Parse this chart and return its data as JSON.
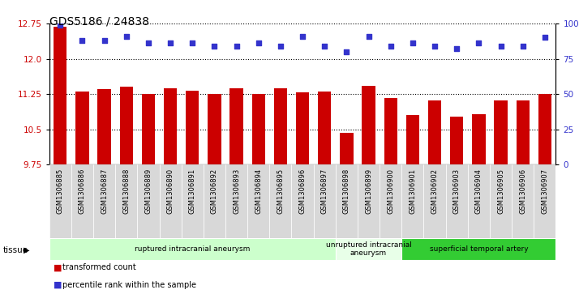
{
  "title": "GDS5186 / 24838",
  "samples": [
    "GSM1306885",
    "GSM1306886",
    "GSM1306887",
    "GSM1306888",
    "GSM1306889",
    "GSM1306890",
    "GSM1306891",
    "GSM1306892",
    "GSM1306893",
    "GSM1306894",
    "GSM1306895",
    "GSM1306896",
    "GSM1306897",
    "GSM1306898",
    "GSM1306899",
    "GSM1306900",
    "GSM1306901",
    "GSM1306902",
    "GSM1306903",
    "GSM1306904",
    "GSM1306905",
    "GSM1306906",
    "GSM1306907"
  ],
  "bar_values": [
    12.68,
    11.3,
    11.35,
    11.4,
    11.25,
    11.37,
    11.32,
    11.25,
    11.37,
    11.25,
    11.38,
    11.28,
    11.3,
    10.43,
    11.42,
    11.17,
    10.8,
    11.12,
    10.77,
    10.83,
    11.12,
    11.12,
    11.26
  ],
  "percentile_values": [
    99,
    88,
    88,
    91,
    86,
    86,
    86,
    84,
    84,
    86,
    84,
    91,
    84,
    80,
    91,
    84,
    86,
    84,
    82,
    86,
    84,
    84,
    90
  ],
  "ylim_left": [
    9.75,
    12.75
  ],
  "ylim_right": [
    0,
    100
  ],
  "yticks_left": [
    9.75,
    10.5,
    11.25,
    12.0,
    12.75
  ],
  "yticks_right": [
    0,
    25,
    50,
    75,
    100
  ],
  "bar_color": "#cc0000",
  "dot_color": "#3333cc",
  "grid_color": "black",
  "plot_bg": "#ffffff",
  "tick_bg": "#d8d8d8",
  "groups": [
    {
      "label": "ruptured intracranial aneurysm",
      "start": 0,
      "end": 13,
      "color": "#ccffcc"
    },
    {
      "label": "unruptured intracranial\naneurysm",
      "start": 13,
      "end": 16,
      "color": "#e8ffe8"
    },
    {
      "label": "superficial temporal artery",
      "start": 16,
      "end": 23,
      "color": "#33cc33"
    }
  ],
  "legend_bar_label": "transformed count",
  "legend_dot_label": "percentile rank within the sample",
  "tissue_label": "tissue",
  "title_fontsize": 10,
  "tick_fontsize": 7.5
}
